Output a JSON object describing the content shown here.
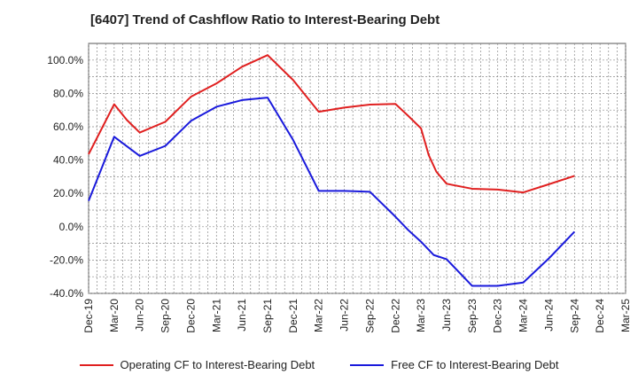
{
  "chart_data": {
    "type": "line",
    "title": "[6407]  Trend of Cashflow Ratio to Interest-Bearing Debt",
    "xlabel": "",
    "ylabel": "",
    "x": [
      "Dec-19",
      "Mar-20",
      "Jun-20",
      "Sep-20",
      "Dec-20",
      "Mar-21",
      "Jun-21",
      "Sep-21",
      "Dec-21",
      "Mar-22",
      "Jun-22",
      "Sep-22",
      "Dec-22",
      "Mar-23",
      "Jun-23",
      "Sep-23",
      "Dec-23",
      "Mar-24",
      "Jun-24",
      "Sep-24",
      "Dec-24",
      "Mar-25"
    ],
    "yticks": [
      "100.0%",
      "80.0%",
      "60.0%",
      "40.0%",
      "20.0%",
      "0.0%",
      "-20.0%",
      "-40.0%"
    ],
    "ylim": [
      -40,
      110
    ],
    "grid": true,
    "legend_position": "bottom",
    "series": [
      {
        "name": "Operating CF to Interest-Bearing Debt",
        "color": "#e02020",
        "points": [
          [
            0,
            43.5
          ],
          [
            0.55,
            60
          ],
          [
            1,
            73.5
          ],
          [
            1.5,
            64
          ],
          [
            2,
            56.5
          ],
          [
            3,
            63
          ],
          [
            4,
            78
          ],
          [
            5,
            86
          ],
          [
            6,
            96
          ],
          [
            7,
            103
          ],
          [
            8,
            88
          ],
          [
            9,
            69
          ],
          [
            10,
            71.5
          ],
          [
            11,
            73.3
          ],
          [
            12,
            73.7
          ],
          [
            12.5,
            66.5
          ],
          [
            13,
            59
          ],
          [
            13.3,
            43
          ],
          [
            13.6,
            33
          ],
          [
            14,
            25.8
          ],
          [
            15,
            22.8
          ],
          [
            16,
            22.3
          ],
          [
            17,
            20.6
          ],
          [
            18,
            25.5
          ],
          [
            19,
            30.5
          ]
        ]
      },
      {
        "name": "Free CF to Interest-Bearing Debt",
        "color": "#1a1adc",
        "points": [
          [
            0,
            15.5
          ],
          [
            1,
            54
          ],
          [
            2,
            42.5
          ],
          [
            3,
            48.5
          ],
          [
            4,
            63.5
          ],
          [
            5,
            72
          ],
          [
            6,
            76
          ],
          [
            7,
            77.5
          ],
          [
            8,
            52
          ],
          [
            9,
            21.5
          ],
          [
            10,
            21.5
          ],
          [
            11,
            21
          ],
          [
            12,
            6
          ],
          [
            12.5,
            -2
          ],
          [
            13,
            -9
          ],
          [
            13.5,
            -17
          ],
          [
            14,
            -19.5
          ],
          [
            15,
            -35.5
          ],
          [
            16,
            -35.5
          ],
          [
            17,
            -33.5
          ],
          [
            18,
            -19
          ],
          [
            19,
            -3
          ]
        ]
      }
    ]
  }
}
